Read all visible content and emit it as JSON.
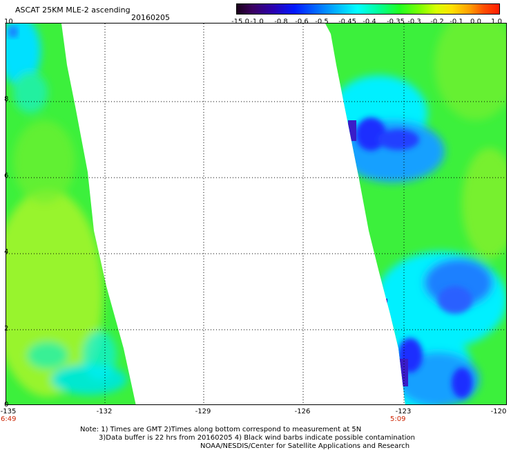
{
  "header": {
    "title": "ASCAT 25KM MLE-2 ascending",
    "date": "20160205"
  },
  "colorbar": {
    "labels": [
      "-15.0",
      "-1.0",
      "-0.8",
      "-0.6",
      "-0.5",
      "-0.45",
      "-0.4",
      "-0.35",
      "-0.3",
      "-0.2",
      "-0.1",
      "0.0",
      "1.0"
    ]
  },
  "map": {
    "y_labels": [
      "10",
      "8",
      "6",
      "4",
      "2",
      "0"
    ],
    "x_labels": [
      "-135",
      "-132",
      "-129",
      "-126",
      "-123",
      "-120"
    ],
    "lat_range": [
      0,
      10
    ],
    "lon_range": [
      -135,
      -120
    ],
    "times": [
      "6:49",
      "5:09"
    ],
    "colors": {
      "swath_green": "#3cf03c",
      "lime": "#a8f528",
      "cyan": "#00f0ff",
      "sky": "#12a0ff",
      "blue": "#1a2fff",
      "indigo": "#3a1cc8",
      "time_text": "#cc2200"
    }
  },
  "footer": {
    "line1": "Note: 1) Times are GMT 2)Times along bottom correspond to measurement at 5N",
    "line2": "3)Data buffer is 22 hrs from 20160205 4) Black wind barbs indicate possible contamination",
    "line3": "NOAA/NESDIS/Center for Satellite Applications and Research"
  }
}
